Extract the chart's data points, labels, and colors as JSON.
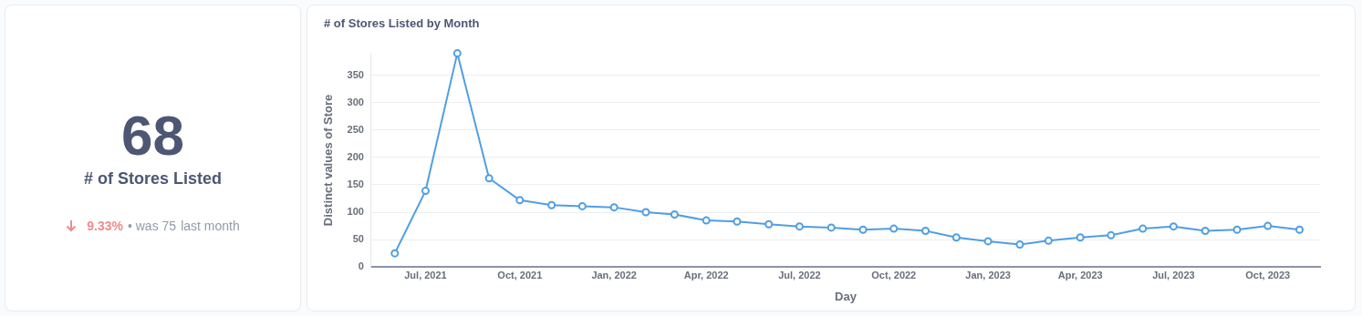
{
  "chart_data": [
    {
      "type": "other",
      "title": "# of Stores Listed",
      "annotations": [
        "68",
        "9.33%",
        "• was 75",
        "last month"
      ]
    },
    {
      "type": "line",
      "title": "# of Stores Listed by Month",
      "xlabel": "Day",
      "ylabel": "Distinct values of Store",
      "x": [
        "2021-06",
        "2021-07",
        "2021-08",
        "2021-09",
        "2021-10",
        "2021-11",
        "2021-12",
        "2022-01",
        "2022-02",
        "2022-03",
        "2022-04",
        "2022-05",
        "2022-06",
        "2022-07",
        "2022-08",
        "2022-09",
        "2022-10",
        "2022-11",
        "2022-12",
        "2023-01",
        "2023-02",
        "2023-03",
        "2023-04",
        "2023-05",
        "2023-06",
        "2023-07",
        "2023-08",
        "2023-09",
        "2023-10",
        "2023-11"
      ],
      "series": [
        {
          "color": "#509ee3",
          "values": [
            25,
            139,
            390,
            162,
            122,
            113,
            111,
            109,
            100,
            96,
            85,
            83,
            78,
            74,
            72,
            68,
            70,
            66,
            54,
            47,
            41,
            48,
            54,
            58,
            70,
            74,
            66,
            68,
            75,
            68
          ]
        }
      ],
      "xlim": [
        "2021-05-09",
        "2023-11-21"
      ],
      "xticks": [
        {
          "value": "2021-07",
          "label": "Jul, 2021"
        },
        {
          "value": "2021-10",
          "label": "Oct, 2021"
        },
        {
          "value": "2022-01",
          "label": "Jan, 2022"
        },
        {
          "value": "2022-04",
          "label": "Apr, 2022"
        },
        {
          "value": "2022-07",
          "label": "Jul, 2022"
        },
        {
          "value": "2022-10",
          "label": "Oct, 2022"
        },
        {
          "value": "2023-01",
          "label": "Jan, 2023"
        },
        {
          "value": "2023-04",
          "label": "Apr, 2023"
        },
        {
          "value": "2023-07",
          "label": "Jul, 2023"
        },
        {
          "value": "2023-10",
          "label": "Oct, 2023"
        }
      ],
      "ylim": [
        0,
        390
      ],
      "yticks": [
        0,
        50,
        100,
        150,
        200,
        250,
        300,
        350
      ],
      "grid": "y",
      "legend": false,
      "marker": "circle",
      "line_style": "solid"
    }
  ]
}
